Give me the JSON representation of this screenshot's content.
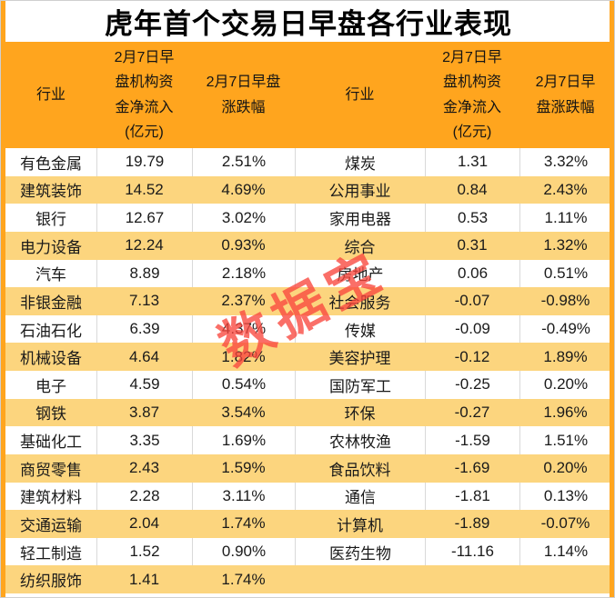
{
  "title": "虎年首个交易日早盘各行业表现",
  "watermark": "数据宝",
  "table": {
    "headers": [
      "行业",
      "2月7日早\n盘机构资\n金净流入\n(亿元)",
      "2月7日早盘\n涨跌幅",
      "行业",
      "2月7日早\n盘机构资\n金净流入\n(亿元)",
      "2月7日早\n盘涨跌幅"
    ]
  },
  "chart_data": {
    "type": "table",
    "title": "虎年首个交易日早盘各行业表现",
    "columns": [
      "行业",
      "2月7日早盘机构资金净流入(亿元)",
      "2月7日早盘涨跌幅"
    ],
    "layout": "two side-by-side tables, 16 zebra rows each, sorted by net inflow descending",
    "rows": [
      [
        "有色金属",
        "19.79",
        "2.51%"
      ],
      [
        "建筑装饰",
        "14.52",
        "4.69%"
      ],
      [
        "银行",
        "12.67",
        "3.02%"
      ],
      [
        "电力设备",
        "12.24",
        "0.93%"
      ],
      [
        "汽车",
        "8.89",
        "2.18%"
      ],
      [
        "非银金融",
        "7.13",
        "2.37%"
      ],
      [
        "石油石化",
        "6.39",
        "4.37%"
      ],
      [
        "机械设备",
        "4.64",
        "1.82%"
      ],
      [
        "电子",
        "4.59",
        "0.54%"
      ],
      [
        "钢铁",
        "3.87",
        "3.54%"
      ],
      [
        "基础化工",
        "3.35",
        "1.69%"
      ],
      [
        "商贸零售",
        "2.43",
        "1.59%"
      ],
      [
        "建筑材料",
        "2.28",
        "3.11%"
      ],
      [
        "交通运输",
        "2.04",
        "1.74%"
      ],
      [
        "轻工制造",
        "1.52",
        "0.90%"
      ],
      [
        "纺织服饰",
        "1.41",
        "1.74%"
      ],
      [
        "煤炭",
        "1.31",
        "3.32%"
      ],
      [
        "公用事业",
        "0.84",
        "2.43%"
      ],
      [
        "家用电器",
        "0.53",
        "1.11%"
      ],
      [
        "综合",
        "0.31",
        "1.32%"
      ],
      [
        "房地产",
        "0.06",
        "0.51%"
      ],
      [
        "社会服务",
        "-0.07",
        "-0.98%"
      ],
      [
        "传媒",
        "-0.09",
        "-0.49%"
      ],
      [
        "美容护理",
        "-0.12",
        "1.89%"
      ],
      [
        "国防军工",
        "-0.25",
        "0.20%"
      ],
      [
        "环保",
        "-0.27",
        "1.96%"
      ],
      [
        "农林牧渔",
        "-1.59",
        "1.51%"
      ],
      [
        "食品饮料",
        "-1.69",
        "0.20%"
      ],
      [
        "通信",
        "-1.81",
        "0.13%"
      ],
      [
        "计算机",
        "-1.89",
        "-0.07%"
      ],
      [
        "医药生物",
        "-11.16",
        "1.14%"
      ]
    ]
  },
  "colors": {
    "header_orange": "#FFA51E",
    "row_alt_orange": "#FCD57E",
    "watermark_red": "#F8463E",
    "separator_gray": "#D9D9D9",
    "text_black": "#1A1A1A"
  }
}
